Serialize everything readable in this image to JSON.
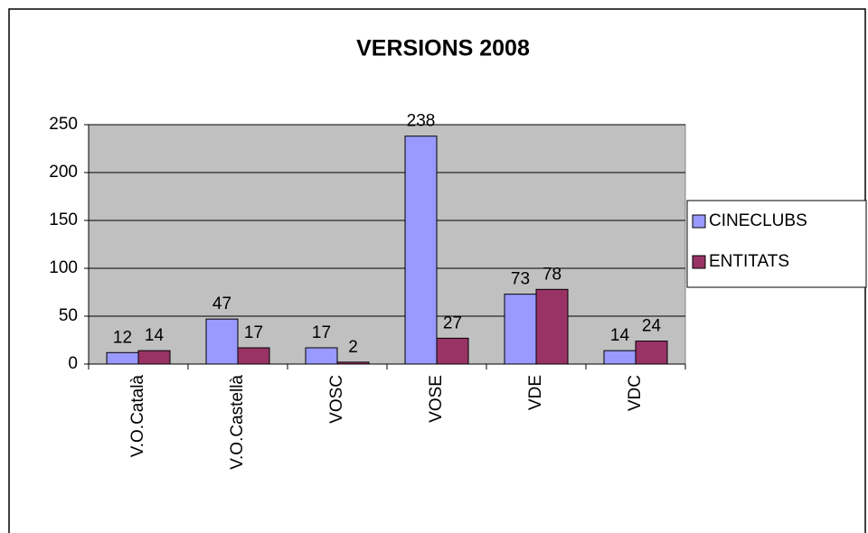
{
  "chart_data": {
    "type": "bar",
    "title": "VERSIONS 2008",
    "categories": [
      "V.O.Català",
      "V.O.Castellà",
      "VOSC",
      "VOSE",
      "VDE",
      "VDC"
    ],
    "series": [
      {
        "name": "CINECLUBS",
        "color": "#9999ff",
        "values": [
          12,
          47,
          17,
          238,
          73,
          14
        ]
      },
      {
        "name": "ENTITATS",
        "color": "#993366",
        "values": [
          14,
          17,
          2,
          27,
          78,
          24
        ]
      }
    ],
    "ylim": [
      0,
      250
    ],
    "yticks": [
      0,
      50,
      100,
      150,
      200,
      250
    ],
    "grid": true,
    "legend": "right"
  }
}
